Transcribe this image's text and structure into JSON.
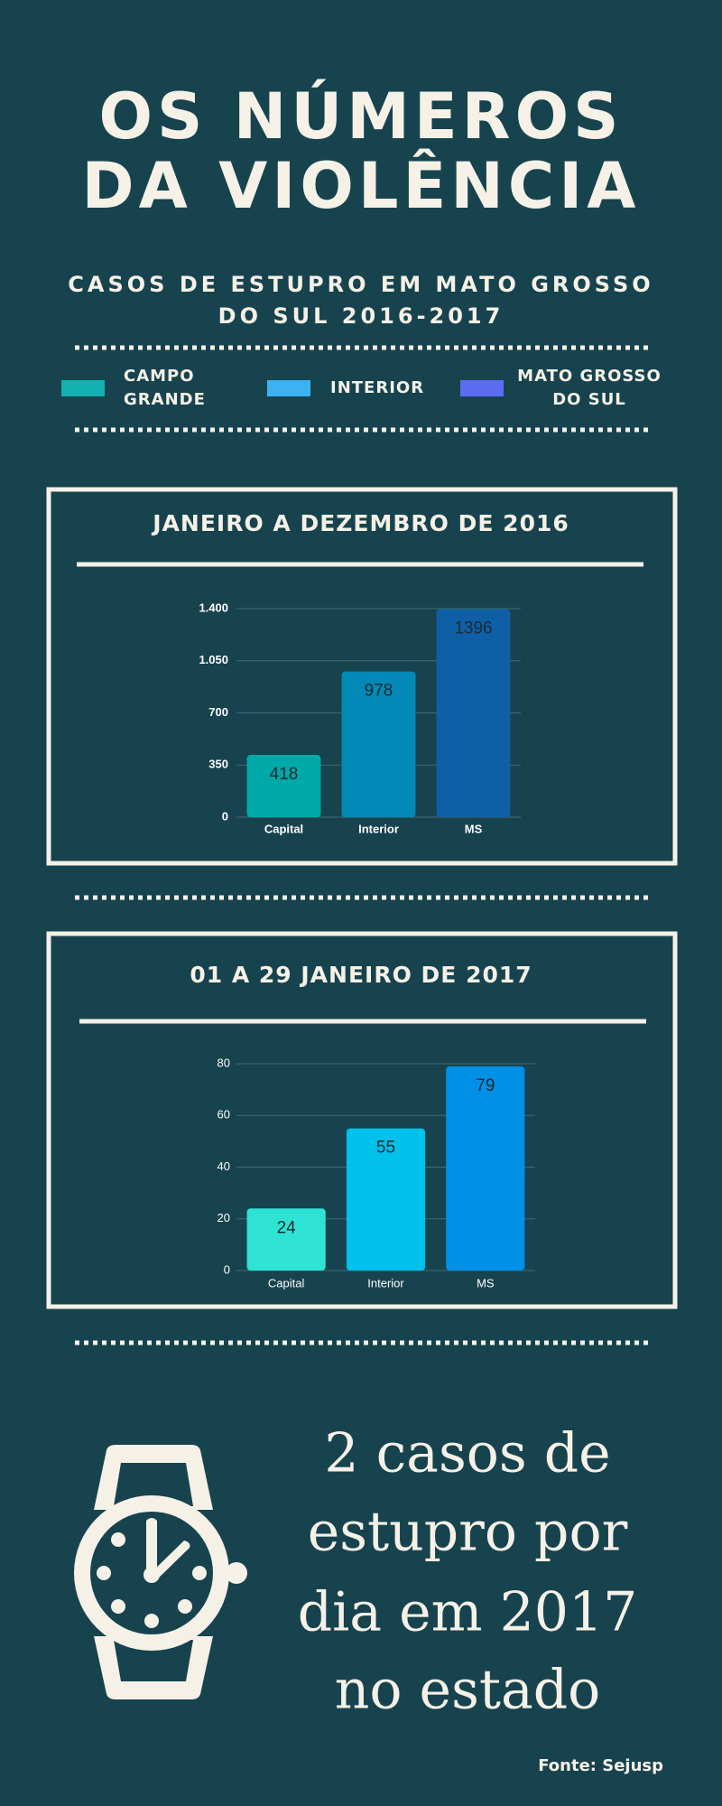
{
  "header": {
    "title": [
      "OS NÚMEROS",
      "DA VIOLÊNCIA"
    ],
    "subtitle": [
      "CASOS DE ESTUPRO EM MATO GROSSO",
      "DO SUL 2016-2017"
    ]
  },
  "legend": [
    {
      "label": [
        "CAMPO",
        "GRANDE"
      ],
      "color": "#13b1b0"
    },
    {
      "label": [
        "INTERIOR"
      ],
      "color": "#3cb2f2"
    },
    {
      "label": [
        "MATO GROSSO",
        "DO SUL"
      ],
      "color": "#5b6cf2"
    }
  ],
  "chart_data": [
    {
      "type": "bar",
      "title": "JANEIRO A DEZEMBRO DE 2016",
      "categories": [
        "Capital",
        "Interior",
        "MS"
      ],
      "values": [
        418,
        978,
        1396
      ],
      "colors": [
        "#00a9a9",
        "#0389b7",
        "#0f5fa6"
      ],
      "ylim": [
        0,
        1400
      ],
      "yticks": [
        0,
        350,
        700,
        {
          "value": 1050,
          "label": "1.050"
        },
        {
          "value": 1400,
          "label": "1.400"
        }
      ],
      "grid": true
    },
    {
      "type": "bar",
      "title": "01 A 29 JANEIRO DE 2017",
      "categories": [
        "Capital",
        "Interior",
        "MS"
      ],
      "values": [
        24,
        55,
        79
      ],
      "colors": [
        "#2ee3d3",
        "#00c0ec",
        "#0090e6"
      ],
      "ylim": [
        0,
        80
      ],
      "yticks": [
        0,
        20,
        40,
        60,
        80
      ],
      "grid": true
    }
  ],
  "highlight": [
    "2 casos de",
    "estupro por",
    "dia em 2017",
    "no estado"
  ],
  "source": "Fonte: Sejusp"
}
